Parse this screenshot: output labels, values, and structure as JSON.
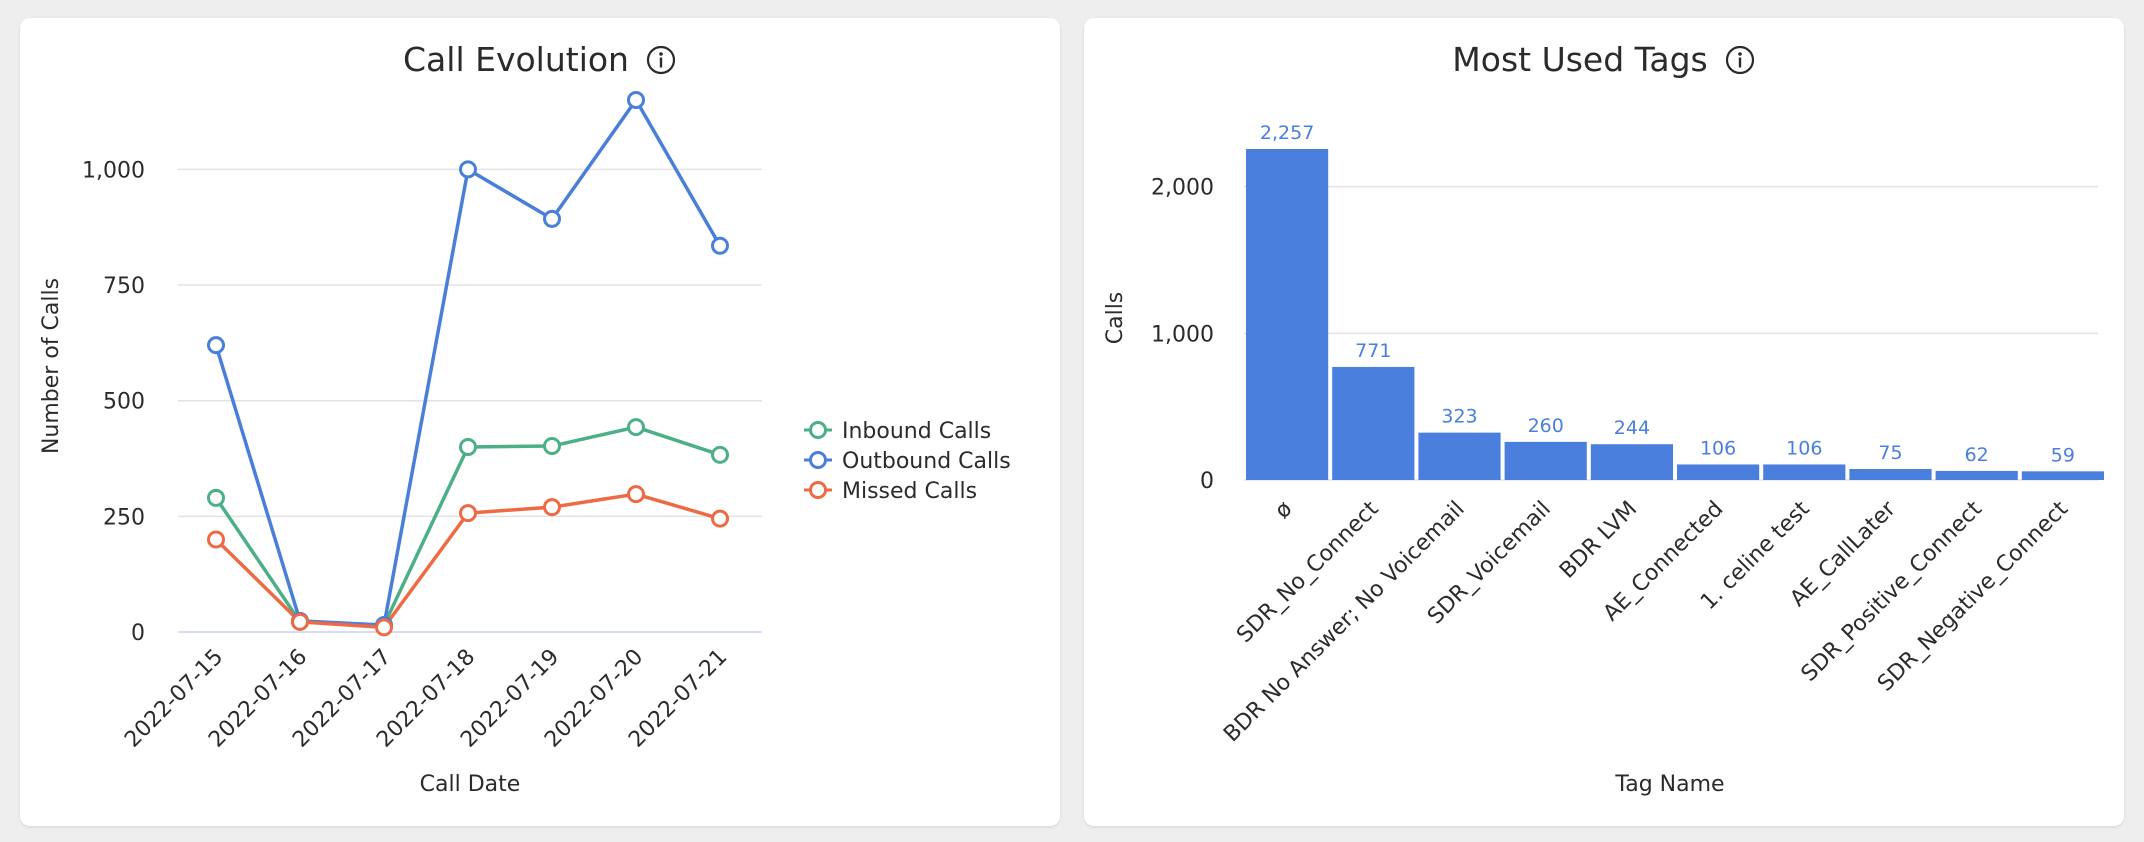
{
  "colors": {
    "inbound": "#4caf87",
    "outbound": "#4a7fd9",
    "missed": "#ee6a44",
    "bar": "#4a7fdd",
    "grid": "#e3e3e3",
    "axis": "#2b2b2b"
  },
  "icons": {
    "info": "info-circle-icon"
  },
  "cards": [
    {
      "title": "Call Evolution"
    },
    {
      "title": "Most Used Tags"
    }
  ],
  "chart_data": [
    {
      "type": "line",
      "title": "Call Evolution",
      "xlabel": "Call Date",
      "ylabel": "Number of Calls",
      "ylim": [
        0,
        1150
      ],
      "yticks": [
        0,
        250,
        500,
        750,
        1000
      ],
      "ytick_labels": [
        "0",
        "250",
        "500",
        "750",
        "1,000"
      ],
      "categories": [
        "2022-07-15",
        "2022-07-16",
        "2022-07-17",
        "2022-07-18",
        "2022-07-19",
        "2022-07-20",
        "2022-07-21"
      ],
      "grid": true,
      "legend_position": "right",
      "series": [
        {
          "name": "Inbound Calls",
          "color": "#4caf87",
          "values": [
            290,
            22,
            15,
            400,
            402,
            443,
            383
          ]
        },
        {
          "name": "Outbound Calls",
          "color": "#4a7fd9",
          "values": [
            620,
            24,
            15,
            1000,
            893,
            1150,
            835
          ]
        },
        {
          "name": "Missed Calls",
          "color": "#ee6a44",
          "values": [
            200,
            22,
            10,
            257,
            270,
            298,
            245
          ]
        }
      ]
    },
    {
      "type": "bar",
      "title": "Most Used Tags",
      "xlabel": "Tag Name",
      "ylabel": "Calls",
      "ylim": [
        0,
        2400
      ],
      "yticks": [
        0,
        1000,
        2000
      ],
      "ytick_labels": [
        "0",
        "1,000",
        "2,000"
      ],
      "grid": true,
      "categories": [
        "ø",
        "SDR_No_Connect",
        "BDR No Answer; No Voicemail",
        "SDR_Voicemail",
        "BDR LVM",
        "AE_Connected",
        "1. celine test",
        "AE_CallLater",
        "SDR_Positive_Connect",
        "SDR_Negative_Connect"
      ],
      "values": [
        2257,
        771,
        323,
        260,
        244,
        106,
        106,
        75,
        62,
        59
      ],
      "value_labels": [
        "2,257",
        "771",
        "323",
        "260",
        "244",
        "106",
        "106",
        "75",
        "62",
        "59"
      ]
    }
  ]
}
